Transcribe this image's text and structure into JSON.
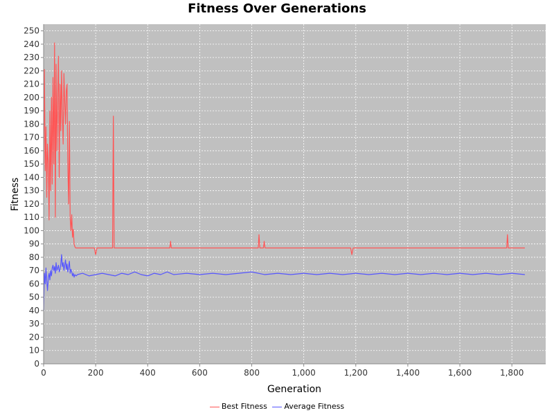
{
  "chart_data": {
    "type": "line",
    "title": "Fitness Over Generations",
    "xlabel": "Generation",
    "ylabel": "Fitness",
    "xlim": [
      0,
      1930
    ],
    "ylim": [
      0,
      255
    ],
    "x_ticks": [
      0,
      200,
      400,
      600,
      800,
      1000,
      1200,
      1400,
      1600,
      1800
    ],
    "x_tick_labels": [
      "0",
      "200",
      "400",
      "600",
      "800",
      "1,000",
      "1,200",
      "1,400",
      "1,600",
      "1,800"
    ],
    "y_ticks": [
      0,
      10,
      20,
      30,
      40,
      50,
      60,
      70,
      80,
      90,
      100,
      110,
      120,
      130,
      140,
      150,
      160,
      170,
      180,
      190,
      200,
      210,
      220,
      230,
      240,
      250
    ],
    "grid": true,
    "plot_background": "#c0c0c0",
    "legend_position": "bottom",
    "series": [
      {
        "name": "Best Fitness",
        "color": "#ff5555",
        "x": [
          0,
          3,
          6,
          9,
          12,
          15,
          18,
          21,
          24,
          27,
          30,
          33,
          36,
          39,
          42,
          45,
          48,
          51,
          54,
          57,
          60,
          63,
          66,
          69,
          72,
          75,
          78,
          81,
          84,
          87,
          90,
          93,
          96,
          99,
          102,
          105,
          108,
          111,
          114,
          117,
          120,
          123,
          126,
          130,
          135,
          140,
          160,
          180,
          195,
          200,
          205,
          220,
          240,
          265,
          268,
          271,
          274,
          300,
          350,
          400,
          450,
          485,
          488,
          491,
          550,
          600,
          650,
          700,
          750,
          800,
          825,
          828,
          831,
          845,
          848,
          851,
          900,
          950,
          1000,
          1050,
          1100,
          1150,
          1180,
          1185,
          1190,
          1250,
          1300,
          1350,
          1400,
          1450,
          1500,
          1550,
          1600,
          1650,
          1700,
          1750,
          1780,
          1783,
          1786,
          1789,
          1800,
          1850
        ],
        "y": [
          150,
          221,
          145,
          178,
          125,
          165,
          150,
          108,
          190,
          130,
          200,
          135,
          215,
          150,
          241,
          110,
          225,
          160,
          200,
          231,
          140,
          210,
          175,
          220,
          190,
          165,
          218,
          198,
          180,
          205,
          210,
          150,
          120,
          182,
          110,
          100,
          112,
          95,
          101,
          90,
          88,
          87,
          87,
          87,
          87,
          87,
          87,
          87,
          87,
          82,
          87,
          87,
          87,
          87,
          186,
          87,
          87,
          87,
          87,
          87,
          87,
          87,
          92,
          87,
          87,
          87,
          87,
          87,
          87,
          87,
          87,
          97,
          87,
          87,
          92,
          87,
          87,
          87,
          87,
          87,
          87,
          87,
          87,
          82,
          87,
          87,
          87,
          87,
          87,
          87,
          87,
          87,
          87,
          87,
          87,
          87,
          87,
          97,
          87,
          87,
          87,
          87
        ]
      },
      {
        "name": "Average Fitness",
        "color": "#5555ff",
        "x": [
          0,
          3,
          6,
          9,
          12,
          15,
          18,
          21,
          24,
          27,
          30,
          33,
          36,
          39,
          42,
          45,
          48,
          51,
          54,
          57,
          60,
          63,
          66,
          69,
          72,
          75,
          78,
          81,
          84,
          87,
          90,
          93,
          96,
          99,
          102,
          105,
          108,
          111,
          114,
          117,
          120,
          125,
          130,
          150,
          175,
          200,
          225,
          250,
          275,
          300,
          325,
          350,
          375,
          400,
          425,
          450,
          475,
          500,
          550,
          600,
          650,
          700,
          750,
          800,
          850,
          900,
          950,
          1000,
          1050,
          1100,
          1150,
          1200,
          1250,
          1300,
          1350,
          1400,
          1450,
          1500,
          1550,
          1600,
          1650,
          1700,
          1750,
          1800,
          1850
        ],
        "y": [
          40,
          68,
          60,
          72,
          62,
          55,
          65,
          68,
          63,
          70,
          66,
          72,
          74,
          70,
          73,
          68,
          76,
          70,
          72,
          74,
          69,
          71,
          75,
          82,
          73,
          76,
          70,
          74,
          78,
          71,
          75,
          69,
          73,
          77,
          68,
          71,
          69,
          66,
          68,
          65,
          67,
          66,
          67,
          68,
          66,
          67,
          68,
          67,
          66,
          68,
          67,
          69,
          67,
          66,
          68,
          67,
          69,
          67,
          68,
          67,
          68,
          67,
          68,
          69,
          67,
          68,
          67,
          68,
          67,
          68,
          67,
          68,
          67,
          68,
          67,
          68,
          67,
          68,
          67,
          68,
          67,
          68,
          67,
          68,
          67
        ]
      }
    ]
  }
}
